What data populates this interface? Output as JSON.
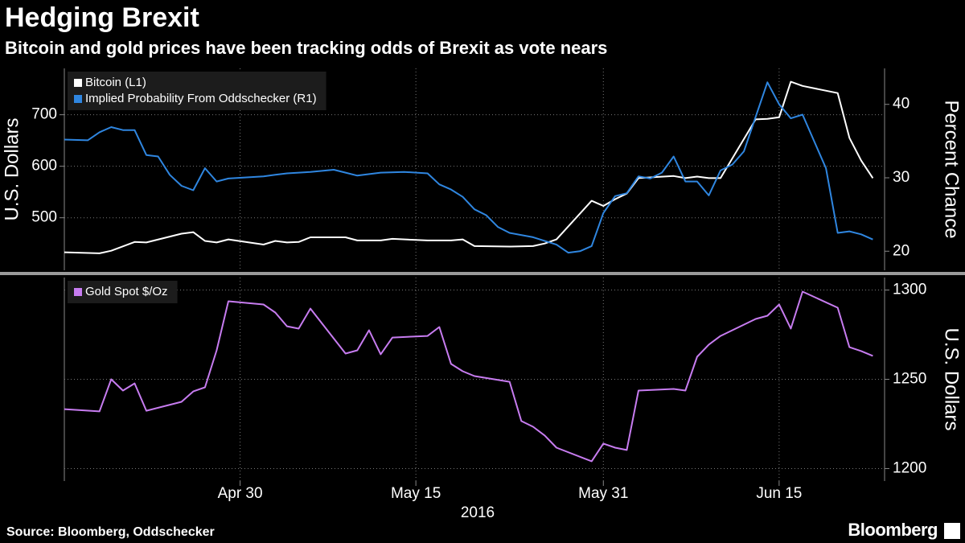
{
  "title": "Hedging Brexit",
  "subtitle": "Bitcoin and gold prices have been tracking odds of Brexit as vote nears",
  "source": "Source: Bloomberg, Oddschecker",
  "logo": "Bloomberg",
  "chart_data": [
    {
      "type": "line",
      "ylabel": "U.S. Dollars",
      "y2label": "Percent Chance",
      "xlim": [
        "2016-04-15",
        "2016-06-24"
      ],
      "xticks": [
        "2016-04-30",
        "2016-05-15",
        "2016-05-31",
        "2016-06-15"
      ],
      "ylim": [
        398,
        790
      ],
      "yticks": [
        500,
        600,
        700
      ],
      "y2lim": [
        17.4,
        44.9
      ],
      "y2ticks": [
        20,
        30,
        40
      ],
      "grid": true,
      "legend": "top-left",
      "series": [
        {
          "name": "Bitcoin (L1)",
          "color": "#ffffff",
          "x": [
            "2016-04-15",
            "2016-04-18",
            "2016-04-19",
            "2016-04-21",
            "2016-04-22",
            "2016-04-25",
            "2016-04-26",
            "2016-04-27",
            "2016-04-28",
            "2016-04-29",
            "2016-05-02",
            "2016-05-03",
            "2016-05-04",
            "2016-05-05",
            "2016-05-06",
            "2016-05-09",
            "2016-05-10",
            "2016-05-12",
            "2016-05-13",
            "2016-05-16",
            "2016-05-18",
            "2016-05-19",
            "2016-05-20",
            "2016-05-23",
            "2016-05-25",
            "2016-05-26",
            "2016-05-27",
            "2016-05-30",
            "2016-05-31",
            "2016-06-01",
            "2016-06-02",
            "2016-06-03",
            "2016-06-06",
            "2016-06-07",
            "2016-06-08",
            "2016-06-09",
            "2016-06-10",
            "2016-06-13",
            "2016-06-14",
            "2016-06-15",
            "2016-06-16",
            "2016-06-17",
            "2016-06-20",
            "2016-06-21",
            "2016-06-22",
            "2016-06-23"
          ],
          "values": [
            433,
            431,
            436,
            453,
            452,
            469,
            472,
            455,
            452,
            458,
            448,
            455,
            452,
            453,
            462,
            462,
            456,
            456,
            459,
            456,
            456,
            458,
            445,
            444,
            445,
            450,
            458,
            533,
            523,
            536,
            547,
            577,
            581,
            577,
            580,
            577,
            577,
            691,
            692,
            695,
            764,
            756,
            742,
            655,
            611,
            577
          ]
        },
        {
          "name": "Implied Probability From Oddschecker (R1)",
          "color": "#2f86e0",
          "axis": "y2",
          "x": [
            "2016-04-15",
            "2016-04-17",
            "2016-04-18",
            "2016-04-19",
            "2016-04-20",
            "2016-04-21",
            "2016-04-22",
            "2016-04-23",
            "2016-04-24",
            "2016-04-25",
            "2016-04-26",
            "2016-04-27",
            "2016-04-28",
            "2016-04-29",
            "2016-05-02",
            "2016-05-03",
            "2016-05-04",
            "2016-05-06",
            "2016-05-08",
            "2016-05-09",
            "2016-05-10",
            "2016-05-12",
            "2016-05-14",
            "2016-05-16",
            "2016-05-17",
            "2016-05-18",
            "2016-05-19",
            "2016-05-20",
            "2016-05-21",
            "2016-05-22",
            "2016-05-23",
            "2016-05-25",
            "2016-05-27",
            "2016-05-28",
            "2016-05-29",
            "2016-05-30",
            "2016-05-31",
            "2016-06-01",
            "2016-06-02",
            "2016-06-03",
            "2016-06-04",
            "2016-06-05",
            "2016-06-06",
            "2016-06-07",
            "2016-06-08",
            "2016-06-09",
            "2016-06-10",
            "2016-06-11",
            "2016-06-12",
            "2016-06-14",
            "2016-06-15",
            "2016-06-16",
            "2016-06-17",
            "2016-06-19",
            "2016-06-20",
            "2016-06-21",
            "2016-06-22",
            "2016-06-23"
          ],
          "values": [
            35.2,
            35.1,
            36.2,
            36.9,
            36.5,
            36.5,
            33.1,
            32.9,
            30.4,
            28.9,
            28.3,
            31.3,
            29.5,
            29.9,
            30.2,
            30.4,
            30.6,
            30.8,
            31.1,
            30.7,
            30.3,
            30.7,
            30.8,
            30.6,
            29.1,
            28.4,
            27.4,
            25.7,
            24.9,
            23.3,
            22.5,
            21.9,
            20.9,
            19.8,
            20.0,
            20.7,
            25.2,
            27.5,
            27.9,
            30.2,
            29.9,
            30.7,
            32.9,
            29.5,
            29.5,
            27.6,
            31.0,
            31.8,
            33.6,
            43.0,
            40.0,
            38.1,
            38.6,
            31.3,
            22.5,
            22.7,
            22.3,
            21.6
          ]
        }
      ]
    },
    {
      "type": "line",
      "y2label": "U.S. Dollars",
      "xlabel": "2016",
      "xlim": [
        "2016-04-15",
        "2016-06-24"
      ],
      "xticks": [
        {
          "value": "2016-04-30",
          "label": "Apr 30"
        },
        {
          "value": "2016-05-15",
          "label": "May 15"
        },
        {
          "value": "2016-05-31",
          "label": "May 31"
        },
        {
          "value": "2016-06-15",
          "label": "Jun 15"
        }
      ],
      "y2lim": [
        1193,
        1307
      ],
      "y2ticks": [
        1200,
        1250,
        1300
      ],
      "grid": true,
      "legend": "top-left",
      "series": [
        {
          "name": "Gold Spot $/Oz",
          "color": "#c77cf0",
          "axis": "y2",
          "x": [
            "2016-04-15",
            "2016-04-18",
            "2016-04-19",
            "2016-04-20",
            "2016-04-21",
            "2016-04-22",
            "2016-04-25",
            "2016-04-26",
            "2016-04-27",
            "2016-04-28",
            "2016-04-29",
            "2016-05-02",
            "2016-05-03",
            "2016-05-04",
            "2016-05-05",
            "2016-05-06",
            "2016-05-09",
            "2016-05-10",
            "2016-05-11",
            "2016-05-12",
            "2016-05-13",
            "2016-05-16",
            "2016-05-17",
            "2016-05-18",
            "2016-05-19",
            "2016-05-20",
            "2016-05-23",
            "2016-05-24",
            "2016-05-25",
            "2016-05-26",
            "2016-05-27",
            "2016-05-30",
            "2016-05-31",
            "2016-06-01",
            "2016-06-02",
            "2016-06-03",
            "2016-06-06",
            "2016-06-07",
            "2016-06-08",
            "2016-06-09",
            "2016-06-10",
            "2016-06-13",
            "2016-06-14",
            "2016-06-15",
            "2016-06-16",
            "2016-06-17",
            "2016-06-20",
            "2016-06-21",
            "2016-06-22",
            "2016-06-23"
          ],
          "values": [
            1233.3,
            1232.0,
            1250.0,
            1243.7,
            1247.7,
            1232.4,
            1237.4,
            1243.2,
            1245.5,
            1266.2,
            1293.7,
            1291.9,
            1287.4,
            1279.7,
            1278.4,
            1289.6,
            1264.4,
            1266.2,
            1277.5,
            1264.0,
            1273.4,
            1274.3,
            1279.3,
            1258.6,
            1254.5,
            1251.8,
            1248.6,
            1226.6,
            1223.4,
            1218.5,
            1211.7,
            1204.1,
            1214.0,
            1211.7,
            1210.4,
            1243.7,
            1244.6,
            1243.7,
            1262.6,
            1269.4,
            1274.3,
            1283.8,
            1285.6,
            1291.9,
            1278.4,
            1299.1,
            1290.1,
            1268.0,
            1265.8,
            1263.1
          ]
        }
      ]
    }
  ]
}
